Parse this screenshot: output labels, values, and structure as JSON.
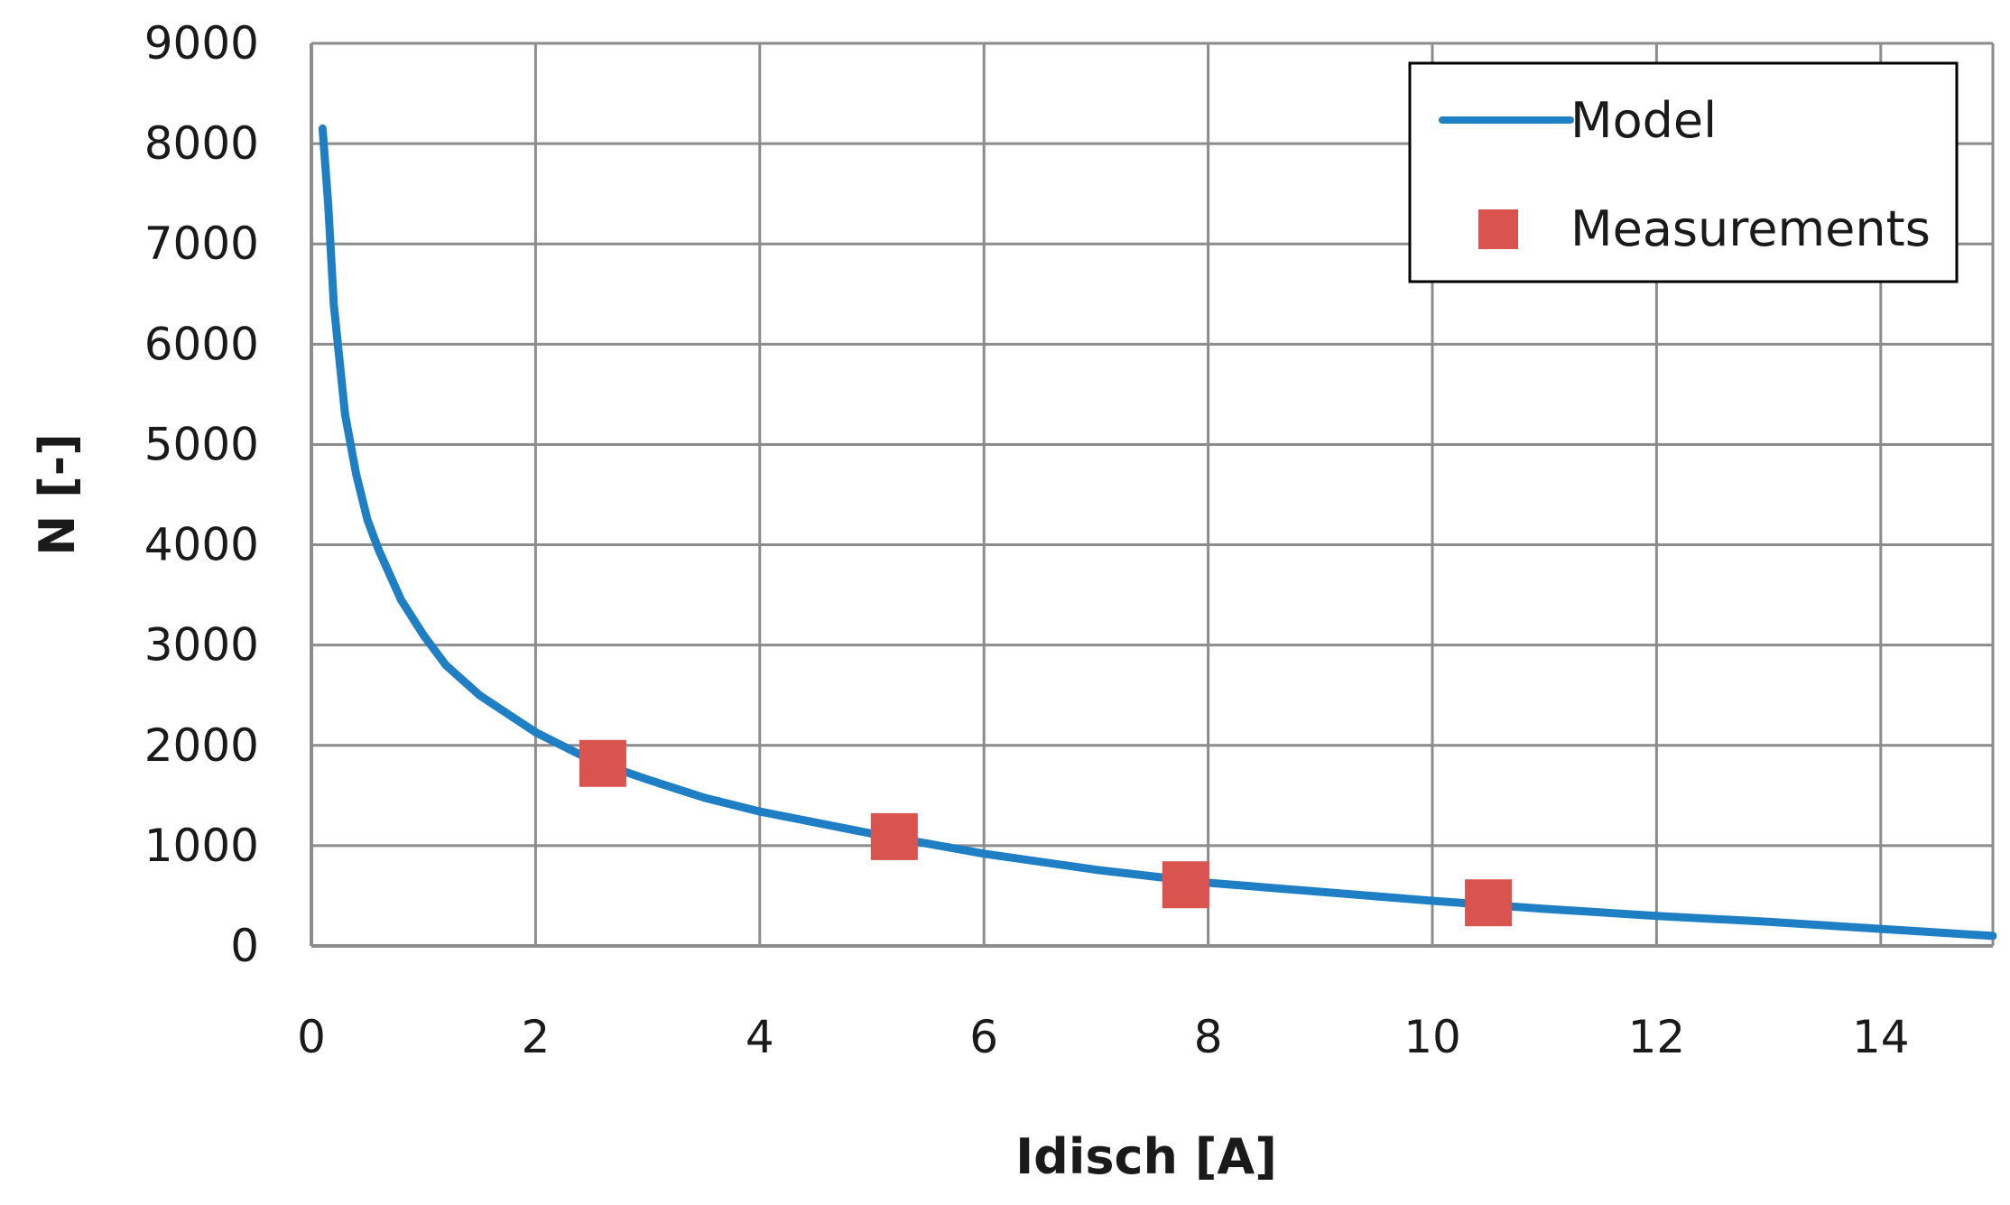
{
  "chart_data": {
    "type": "line",
    "title": "",
    "xlabel": "Idisch [A]",
    "ylabel": "N [-]",
    "xlim": [
      0,
      15
    ],
    "ylim": [
      0,
      9000
    ],
    "xticks": [
      0,
      2,
      4,
      6,
      8,
      10,
      12,
      14
    ],
    "yticks": [
      0,
      1000,
      2000,
      3000,
      4000,
      5000,
      6000,
      7000,
      8000,
      9000
    ],
    "grid": true,
    "legend_position": "top-right",
    "colors": {
      "model": "#1f7fc4",
      "measurements": "#d9534f",
      "grid": "#8c8c8c",
      "axis": "#8c8c8c"
    },
    "series": [
      {
        "name": "Model",
        "kind": "line",
        "x": [
          0.1,
          0.15,
          0.2,
          0.3,
          0.4,
          0.5,
          0.6,
          0.8,
          1.0,
          1.2,
          1.5,
          2.0,
          2.5,
          3.0,
          3.5,
          4.0,
          4.5,
          5.0,
          5.5,
          6.0,
          7.0,
          8.0,
          9.0,
          10.0,
          11.0,
          12.0,
          13.0,
          14.0,
          15.0
        ],
        "y": [
          8150,
          7400,
          6400,
          5300,
          4700,
          4250,
          3950,
          3450,
          3100,
          2800,
          2500,
          2130,
          1850,
          1660,
          1480,
          1340,
          1230,
          1120,
          1020,
          920,
          760,
          630,
          540,
          450,
          370,
          300,
          240,
          170,
          100
        ]
      },
      {
        "name": "Measurements",
        "kind": "scatter",
        "x": [
          2.6,
          5.2,
          7.8,
          10.5
        ],
        "y": [
          1820,
          1090,
          610,
          430
        ]
      }
    ]
  }
}
